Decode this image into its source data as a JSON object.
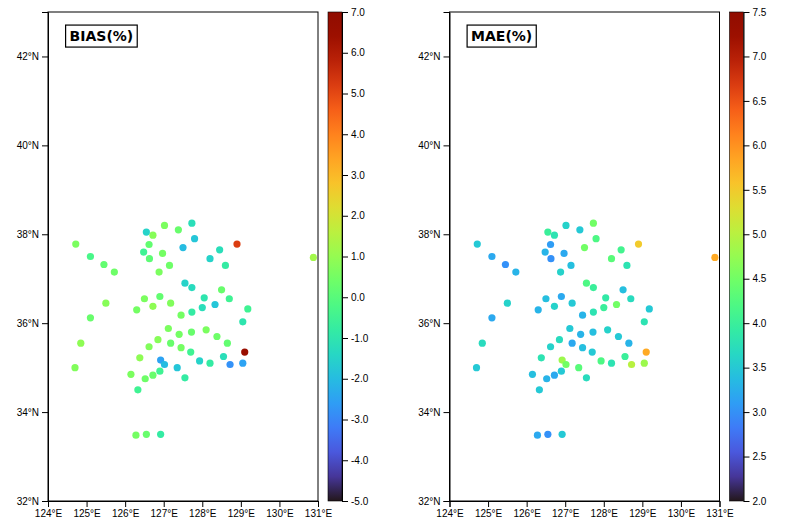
{
  "chart_data": [
    {
      "type": "scatter",
      "title": "BIAS(%)",
      "x": [
        126.97,
        127.38,
        127.73,
        128.9,
        126.63,
        126.48,
        126.62,
        126.72,
        127.02,
        126.55,
        127.5,
        127.8,
        128.2,
        128.45,
        128.6,
        127.15,
        126.88,
        127.55,
        127.73,
        128.05,
        128.33,
        129.05,
        129.18,
        128.7,
        128.5,
        128.0,
        127.73,
        127.45,
        127.18,
        126.9,
        126.72,
        126.5,
        126.3,
        126.92,
        127.02,
        127.35,
        127.18,
        127.45,
        127.7,
        127.93,
        128.2,
        128.55,
        128.72,
        129.05,
        129.1,
        128.65,
        128.38,
        128.1,
        127.72,
        127.4,
        127.12,
        126.85,
        126.62,
        126.38,
        126.15,
        126.52,
        126.72,
        126.9,
        127.55,
        126.33,
        126.55,
        126.28,
        126.92,
        124.72,
        125.1,
        125.45,
        125.72,
        125.5,
        125.1,
        124.85,
        124.7,
        130.88
      ],
      "values": [
        37.57,
        38.1,
        38.25,
        37.78,
        37.45,
        37.6,
        37.77,
        37.98,
        38.2,
        38.05,
        37.7,
        37.9,
        37.45,
        37.65,
        37.3,
        37.3,
        37.15,
        36.9,
        36.8,
        36.57,
        36.42,
        36.03,
        36.32,
        36.55,
        36.75,
        36.35,
        36.25,
        36.18,
        36.45,
        36.6,
        36.38,
        36.55,
        36.3,
        35.17,
        35.07,
        35.0,
        35.55,
        35.45,
        35.35,
        35.15,
        35.1,
        35.25,
        35.07,
        35.1,
        35.35,
        35.55,
        35.7,
        35.85,
        35.8,
        35.75,
        35.88,
        35.63,
        35.47,
        35.22,
        34.85,
        34.75,
        34.83,
        34.92,
        34.77,
        34.5,
        33.5,
        33.48,
        33.5,
        37.78,
        37.5,
        37.32,
        37.15,
        36.45,
        36.12,
        35.55,
        35.0,
        37.48
      ],
      "color_values": [
        0.5,
        0.3,
        -1.2,
        5.2,
        0.1,
        -0.5,
        0.2,
        0.8,
        0.6,
        -1.5,
        -2.0,
        -1.8,
        -1.5,
        -1.2,
        -0.8,
        0.4,
        0.6,
        -1.5,
        -1.3,
        -1.0,
        -1.8,
        -1.0,
        -0.5,
        -0.5,
        0.3,
        -1.2,
        -0.8,
        0.5,
        0.7,
        0.2,
        0.9,
        0.6,
        0.5,
        -2.5,
        -2.0,
        -1.8,
        0.3,
        0.5,
        -0.5,
        -1.5,
        -0.8,
        -1.2,
        -2.8,
        -2.5,
        6.5,
        0.2,
        0.4,
        0.6,
        0.3,
        0.5,
        0.6,
        0.8,
        0.7,
        0.9,
        0.6,
        0.4,
        0.3,
        -0.5,
        -0.8,
        -0.5,
        0.3,
        0.5,
        -0.8,
        0.6,
        -0.3,
        0.2,
        0.4,
        0.8,
        0.3,
        0.9,
        0.7,
        1.2
      ],
      "xlim": [
        124,
        131
      ],
      "ylim": [
        32,
        43
      ],
      "xticks": [
        {
          "value": 124,
          "label": "124°E"
        },
        {
          "value": 125,
          "label": "125°E"
        },
        {
          "value": 126,
          "label": "126°E"
        },
        {
          "value": 127,
          "label": "127°E"
        },
        {
          "value": 128,
          "label": "128°E"
        },
        {
          "value": 129,
          "label": "129°E"
        },
        {
          "value": 130,
          "label": "130°E"
        },
        {
          "value": 131,
          "label": "131°E"
        }
      ],
      "yticks": [
        {
          "value": 32,
          "label": "32°N"
        },
        {
          "value": 34,
          "label": "34°N"
        },
        {
          "value": 36,
          "label": "36°N"
        },
        {
          "value": 38,
          "label": "38°N"
        },
        {
          "value": 40,
          "label": "40°N"
        },
        {
          "value": 42,
          "label": "42°N"
        }
      ],
      "colorbar_lim": [
        -5.0,
        7.0
      ],
      "colorbar_ticks": [
        {
          "value": -5.0,
          "label": "-5.0"
        },
        {
          "value": -4.0,
          "label": "-4.0"
        },
        {
          "value": -3.0,
          "label": "-3.0"
        },
        {
          "value": -2.0,
          "label": "-2.0"
        },
        {
          "value": -1.0,
          "label": "-1.0"
        },
        {
          "value": 0.0,
          "label": "0.0"
        },
        {
          "value": 1.0,
          "label": "1.0"
        },
        {
          "value": 2.0,
          "label": "2.0"
        },
        {
          "value": 3.0,
          "label": "3.0"
        },
        {
          "value": 4.0,
          "label": "4.0"
        },
        {
          "value": 5.0,
          "label": "5.0"
        },
        {
          "value": 6.0,
          "label": "6.0"
        },
        {
          "value": 7.0,
          "label": "7.0"
        }
      ]
    },
    {
      "type": "scatter",
      "title": "MAE(%)",
      "x": [
        126.97,
        127.38,
        127.73,
        128.9,
        126.63,
        126.48,
        126.62,
        126.72,
        127.02,
        126.55,
        127.5,
        127.8,
        128.2,
        128.45,
        128.6,
        127.15,
        126.88,
        127.55,
        127.73,
        128.05,
        128.33,
        129.05,
        129.18,
        128.7,
        128.5,
        128.0,
        127.73,
        127.45,
        127.18,
        126.9,
        126.72,
        126.5,
        126.3,
        126.92,
        127.02,
        127.35,
        127.18,
        127.45,
        127.7,
        127.93,
        128.2,
        128.55,
        128.72,
        129.05,
        129.1,
        128.65,
        128.38,
        128.1,
        127.72,
        127.4,
        127.12,
        126.85,
        126.62,
        126.38,
        126.15,
        126.52,
        126.72,
        126.9,
        127.55,
        126.33,
        126.55,
        126.28,
        126.92,
        124.72,
        125.1,
        125.45,
        125.72,
        125.5,
        125.1,
        124.85,
        124.7,
        130.88
      ],
      "values": [
        37.57,
        38.1,
        38.25,
        37.78,
        37.45,
        37.6,
        37.77,
        37.98,
        38.2,
        38.05,
        37.7,
        37.9,
        37.45,
        37.65,
        37.3,
        37.3,
        37.15,
        36.9,
        36.8,
        36.57,
        36.42,
        36.03,
        36.32,
        36.55,
        36.75,
        36.35,
        36.25,
        36.18,
        36.45,
        36.6,
        36.38,
        36.55,
        36.3,
        35.17,
        35.07,
        35.0,
        35.55,
        35.45,
        35.35,
        35.15,
        35.1,
        35.25,
        35.07,
        35.1,
        35.35,
        35.55,
        35.7,
        35.85,
        35.8,
        35.75,
        35.88,
        35.63,
        35.47,
        35.22,
        34.85,
        34.75,
        34.83,
        34.92,
        34.77,
        34.5,
        33.5,
        33.48,
        33.5,
        37.78,
        37.5,
        37.32,
        37.15,
        36.45,
        36.12,
        35.55,
        35.0,
        37.48
      ],
      "color_values": [
        3.2,
        3.5,
        4.5,
        5.5,
        3.0,
        3.3,
        3.1,
        3.8,
        3.6,
        4.0,
        4.5,
        4.2,
        4.3,
        4.1,
        3.8,
        3.4,
        3.6,
        4.2,
        4.0,
        3.9,
        4.5,
        3.8,
        3.5,
        3.7,
        3.4,
        4.0,
        3.8,
        3.3,
        3.5,
        3.2,
        3.6,
        3.4,
        3.3,
        4.8,
        4.5,
        4.3,
        3.2,
        3.4,
        3.5,
        4.2,
        3.8,
        4.0,
        5.0,
        4.8,
        5.8,
        3.3,
        3.5,
        3.6,
        3.4,
        3.3,
        3.5,
        3.7,
        3.6,
        3.8,
        3.4,
        3.3,
        3.2,
        3.5,
        3.7,
        3.5,
        3.0,
        3.2,
        3.5,
        3.5,
        3.2,
        3.0,
        3.3,
        3.6,
        3.2,
        3.7,
        3.5,
        5.8
      ],
      "xlim": [
        124,
        131
      ],
      "ylim": [
        32,
        43
      ],
      "xticks": [
        {
          "value": 124,
          "label": "124°E"
        },
        {
          "value": 125,
          "label": "125°E"
        },
        {
          "value": 126,
          "label": "126°E"
        },
        {
          "value": 127,
          "label": "127°E"
        },
        {
          "value": 128,
          "label": "128°E"
        },
        {
          "value": 129,
          "label": "129°E"
        },
        {
          "value": 130,
          "label": "130°E"
        },
        {
          "value": 131,
          "label": "131°E"
        }
      ],
      "yticks": [
        {
          "value": 32,
          "label": "32°N"
        },
        {
          "value": 34,
          "label": "34°N"
        },
        {
          "value": 36,
          "label": "36°N"
        },
        {
          "value": 38,
          "label": "38°N"
        },
        {
          "value": 40,
          "label": "40°N"
        },
        {
          "value": 42,
          "label": "42°N"
        }
      ],
      "colorbar_lim": [
        2.0,
        7.5
      ],
      "colorbar_ticks": [
        {
          "value": 2.0,
          "label": "2.0"
        },
        2.5,
        {
          "value": 3.0,
          "label": "3.0"
        },
        3.5,
        {
          "value": 4.0,
          "label": "4.0"
        },
        4.5,
        {
          "value": 5.0,
          "label": "5.0"
        },
        5.5,
        {
          "value": 6.0,
          "label": "6.0"
        },
        6.5,
        {
          "value": 7.0,
          "label": "7.0"
        },
        7.5
      ]
    }
  ]
}
